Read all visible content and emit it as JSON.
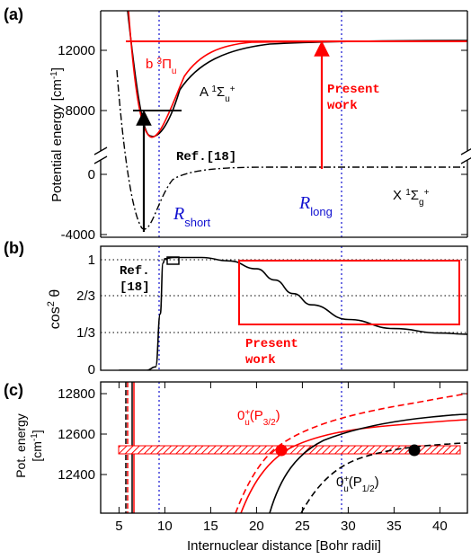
{
  "chart_data": [
    {
      "panel": "(a)",
      "type": "line",
      "ylabel": "Potential energy  [cm⁻¹]",
      "yticks": [
        "12000",
        "8000",
        "0",
        "-4000"
      ],
      "xlim": [
        3,
        43
      ],
      "ylim": [
        -4300,
        14500
      ],
      "y_axis_break": true,
      "curves": [
        {
          "name": "b ³Πᵤ",
          "color": "#ff0000",
          "dissociation": 12560,
          "minimum": [
            7.7,
            5900
          ]
        },
        {
          "name": "A ¹Σᵤ⁺",
          "color": "#000000",
          "dissociation": 12740,
          "minimum": [
            8.5,
            5800
          ]
        },
        {
          "name": "X ¹Σg⁺",
          "color": "#000000",
          "style": "dash-dot",
          "dissociation": 0,
          "minimum": [
            7.4,
            -3800
          ]
        }
      ],
      "annotations": [
        {
          "text": "Present work",
          "color": "#ff0000"
        },
        {
          "text": "Ref.[18]",
          "color": "#000000"
        },
        {
          "text": "R_short",
          "x": 9.2,
          "color": "#0000cc"
        },
        {
          "text": "R_long",
          "x": 29.3,
          "color": "#0000cc"
        }
      ],
      "arrows": [
        {
          "from": [
            7.7,
            -3800
          ],
          "to": [
            7.7,
            7800
          ],
          "color": "#000000"
        },
        {
          "from": [
            27,
            0
          ],
          "to": [
            27,
            12560
          ],
          "color": "#ff0000"
        }
      ],
      "horizontal_lines": [
        {
          "x": [
            7.2,
            10.8
          ],
          "y": 7800,
          "color": "#000000"
        },
        {
          "x": [
            8,
            43
          ],
          "y": 12560,
          "color": "#ff0000"
        }
      ]
    },
    {
      "panel": "(b)",
      "type": "line",
      "ylabel": "cos²θ",
      "yticks": [
        "1",
        "2/3",
        "1/3",
        "0"
      ],
      "ylim": [
        0,
        1.1
      ],
      "x": [
        5,
        8,
        9,
        9.5,
        9.8,
        10,
        11,
        14,
        17,
        20,
        22,
        24,
        26,
        30,
        35,
        40,
        43
      ],
      "y": [
        0.0,
        0.0,
        0.03,
        0.5,
        0.95,
        0.99,
        1.0,
        1.0,
        0.97,
        0.9,
        0.8,
        0.68,
        0.58,
        0.45,
        0.37,
        0.33,
        0.32
      ],
      "annotations": [
        {
          "text": "Ref. [18]",
          "color": "#000000"
        },
        {
          "text": "Present work",
          "color": "#ff0000"
        }
      ],
      "boxes": [
        {
          "x": [
            18,
            42
          ],
          "y": [
            0.38,
            0.99
          ],
          "color": "#ff0000"
        },
        {
          "x": [
            10.2,
            11.4
          ],
          "y": [
            0.98,
            1.04
          ],
          "color": "#000000"
        }
      ]
    },
    {
      "panel": "(c)",
      "type": "line",
      "ylabel": "Pot. energy [cm⁻¹]",
      "yticks": [
        "12800",
        "12600",
        "12400"
      ],
      "ylim": [
        12250,
        12830
      ],
      "xlim": [
        3,
        43
      ],
      "xticks": [
        "5",
        "10",
        "15",
        "20",
        "25",
        "30",
        "35",
        "40"
      ],
      "xlabel": "Internuclear distance [Bohr radii]",
      "curves": [
        {
          "name": "0ᵤ⁺(P₃/₂)",
          "color": "#ff0000",
          "limit": 12815
        },
        {
          "name": "0ᵤ⁺(P₁/₂)",
          "color": "#000000",
          "limit": 12580
        }
      ],
      "band": {
        "y": 12521,
        "x": [
          4,
          42.5
        ],
        "color": "#ff0000"
      },
      "points": [
        {
          "x": 22.5,
          "y": 12521,
          "color": "#ff0000"
        },
        {
          "x": 37.1,
          "y": 12521,
          "color": "#000000"
        }
      ]
    }
  ]
}
